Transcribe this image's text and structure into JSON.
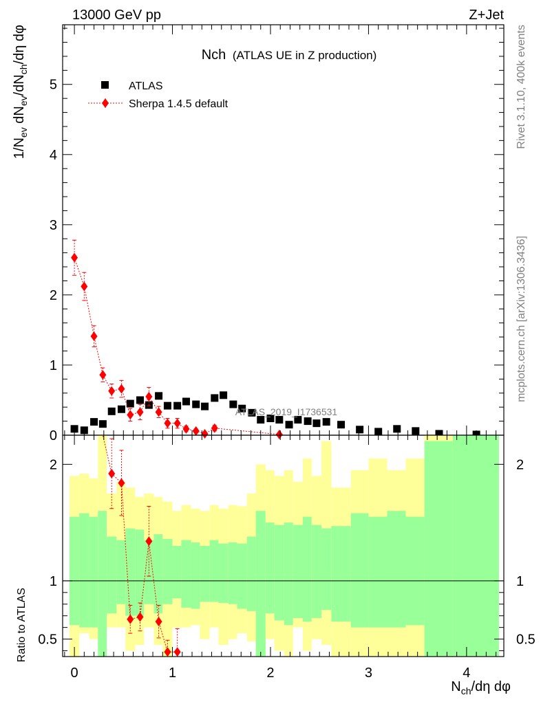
{
  "header": {
    "left_label": "13000 GeV pp",
    "right_label": "Z+Jet"
  },
  "side_labels": {
    "rivet": "Rivet 3.1.10,  400k events",
    "mcplots": "mcplots.cern.ch [arXiv:1306.3436]"
  },
  "chart_data": [
    {
      "type": "scatter",
      "panel": "main",
      "title_main": "Nch",
      "title_sub": "(ATLAS UE in Z production)",
      "watermark": "ATLAS_2019_I1736531",
      "ylabel": {
        "base": "1/N",
        "sub1": "ev",
        "mid1": " dN",
        "sub2": "ev",
        "mid2": "/dN",
        "sub3": "ch",
        "tail": "/dη dφ"
      },
      "xlabel": {
        "base": "N",
        "sub": "ch",
        "tail": "/dη dφ"
      },
      "xlim": [
        -0.12,
        4.38
      ],
      "ylim": [
        0,
        5.85
      ],
      "xticks": [
        0,
        1,
        2,
        3,
        4
      ],
      "yticks": [
        0,
        1,
        2,
        3,
        4,
        5
      ],
      "legend_position": "top-left",
      "series": [
        {
          "name": "ATLAS",
          "color": "#000000",
          "marker": "square",
          "x": [
            0.0,
            0.1,
            0.2,
            0.29,
            0.38,
            0.48,
            0.57,
            0.67,
            0.76,
            0.86,
            0.95,
            1.05,
            1.14,
            1.24,
            1.33,
            1.43,
            1.52,
            1.62,
            1.71,
            1.81,
            1.9,
            2.0,
            2.09,
            2.19,
            2.28,
            2.38,
            2.47,
            2.57,
            2.72,
            2.91,
            3.1,
            3.29,
            3.48,
            3.72,
            4.1
          ],
          "y": [
            0.09,
            0.07,
            0.19,
            0.16,
            0.34,
            0.37,
            0.45,
            0.5,
            0.43,
            0.56,
            0.42,
            0.42,
            0.48,
            0.44,
            0.41,
            0.53,
            0.57,
            0.44,
            0.38,
            0.32,
            0.22,
            0.24,
            0.22,
            0.15,
            0.22,
            0.2,
            0.17,
            0.19,
            0.15,
            0.08,
            0.05,
            0.09,
            0.06,
            0.02,
            0.01
          ]
        },
        {
          "name": "Sherpa 1.4.5 default",
          "color": "#ff0000",
          "marker": "diamond",
          "line": "dotted",
          "x": [
            0.0,
            0.1,
            0.2,
            0.29,
            0.38,
            0.48,
            0.57,
            0.67,
            0.76,
            0.86,
            0.95,
            1.05,
            1.14,
            1.24,
            1.33,
            1.43,
            2.09
          ],
          "y": [
            2.53,
            2.12,
            1.41,
            0.86,
            0.63,
            0.66,
            0.29,
            0.33,
            0.55,
            0.33,
            0.17,
            0.17,
            0.09,
            0.06,
            0.02,
            0.1,
            0.01
          ],
          "yerr": [
            0.25,
            0.2,
            0.15,
            0.1,
            0.1,
            0.12,
            0.09,
            0.11,
            0.13,
            0.08,
            0.07,
            0.07,
            0.04,
            0.03,
            0.02,
            0.04,
            0.01
          ]
        }
      ]
    },
    {
      "type": "scatter",
      "panel": "ratio",
      "ylabel": "Ratio to ATLAS",
      "ylim": [
        0.35,
        2.25
      ],
      "yticks": [
        0.5,
        1,
        2
      ],
      "ytick_labels": [
        "0.5",
        "1",
        "2"
      ],
      "reference_line": 1,
      "bands": {
        "bin_edges": [
          -0.05,
          0.05,
          0.15,
          0.24,
          0.33,
          0.43,
          0.52,
          0.62,
          0.71,
          0.81,
          0.9,
          1.0,
          1.09,
          1.19,
          1.28,
          1.38,
          1.47,
          1.57,
          1.66,
          1.76,
          1.85,
          1.95,
          2.04,
          2.14,
          2.23,
          2.33,
          2.42,
          2.52,
          2.62,
          2.82,
          3.0,
          3.19,
          3.38,
          3.57,
          3.86,
          4.33
        ],
        "green_color": "#99ff99",
        "yellow_color": "#ffff99",
        "green_lo": [
          0.62,
          0.6,
          0.6,
          0.35,
          0.72,
          0.8,
          0.7,
          0.7,
          0.8,
          0.72,
          0.8,
          0.85,
          0.77,
          0.76,
          0.82,
          0.82,
          0.81,
          0.8,
          0.76,
          0.74,
          0.35,
          0.72,
          0.66,
          0.62,
          0.68,
          0.65,
          0.68,
          0.75,
          0.65,
          0.6,
          0.6,
          0.6,
          0.62,
          0.35,
          0.35
        ],
        "green_hi": [
          1.55,
          1.58,
          1.55,
          1.6,
          1.38,
          1.35,
          1.45,
          1.44,
          1.35,
          1.4,
          1.36,
          1.3,
          1.35,
          1.33,
          1.3,
          1.35,
          1.32,
          1.33,
          1.32,
          1.38,
          1.6,
          1.5,
          1.48,
          1.5,
          1.48,
          1.55,
          1.48,
          1.45,
          1.47,
          1.58,
          1.55,
          1.6,
          1.55,
          2.2,
          2.25
        ],
        "yellow_lo": [
          0.35,
          0.55,
          0.5,
          0.35,
          0.6,
          0.6,
          0.4,
          0.45,
          0.6,
          0.45,
          0.35,
          0.6,
          0.6,
          0.62,
          0.5,
          0.6,
          0.45,
          0.5,
          0.55,
          0.48,
          0.35,
          0.5,
          0.4,
          0.35,
          0.6,
          0.4,
          0.5,
          0.45,
          0.35,
          0.35,
          0.35,
          0.35,
          0.35,
          0.35,
          0.35
        ],
        "yellow_hi": [
          1.9,
          1.92,
          1.88,
          2.25,
          1.75,
          1.85,
          1.8,
          1.72,
          1.75,
          1.72,
          1.68,
          1.6,
          1.65,
          1.62,
          1.6,
          1.65,
          1.62,
          1.65,
          1.64,
          1.75,
          2.0,
          1.95,
          1.9,
          1.95,
          1.85,
          2.05,
          1.9,
          2.2,
          1.8,
          1.95,
          2.05,
          1.95,
          2.05,
          2.25,
          2.25
        ]
      },
      "series": [
        {
          "name": "Sherpa 1.4.5 default",
          "color": "#ff0000",
          "marker": "diamond",
          "line": "dotted",
          "x": [
            0.38,
            0.48,
            0.57,
            0.67,
            0.76,
            0.86,
            0.95,
            1.05
          ],
          "y": [
            1.92,
            1.84,
            0.67,
            0.69,
            1.34,
            0.65,
            0.39,
            0.39
          ],
          "yerr": [
            0.3,
            0.28,
            0.12,
            0.12,
            0.3,
            0.14,
            0.1,
            0.2
          ]
        }
      ]
    }
  ]
}
